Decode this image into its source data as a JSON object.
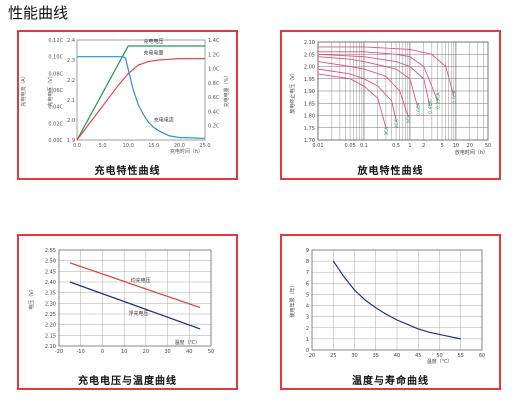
{
  "page_title": "性能曲线",
  "chart_data": [
    {
      "type": "line",
      "caption": "充电特性曲线",
      "xlabel": "充电时间（h）",
      "x_ticks": [
        "0.0",
        "5.0",
        "10.0",
        "15.0",
        "20.0",
        "25.0"
      ],
      "xlim": [
        0,
        25
      ],
      "left_axis_label": "充电电流（A）",
      "left_ticks": [
        "0.00C",
        "0.02C",
        "0.04C",
        "0.06C",
        "0.08C",
        "0.10C",
        "0.12C"
      ],
      "left_ylim": [
        0,
        0.12
      ],
      "mid_axis_label": "充电电压（V）",
      "mid_ticks": [
        "1.9",
        "2.0",
        "2.1",
        "2.2",
        "2.3",
        "2.4"
      ],
      "mid_ylim": [
        1.9,
        2.4
      ],
      "right_axis_label": "充电电量（%）",
      "right_ticks": [
        "0.2C",
        "0.4C",
        "0.6C",
        "0.8C",
        "1.0C",
        "1.2C",
        "1.4C"
      ],
      "right_ylim": [
        0,
        1.4
      ],
      "series": [
        {
          "name": "充电电压",
          "color": "#1a9a52",
          "axis": "mid",
          "x": [
            0,
            10,
            25
          ],
          "y": [
            1.9,
            2.37,
            2.37
          ]
        },
        {
          "name": "充电电量",
          "color": "#e04a4a",
          "axis": "right",
          "x": [
            0,
            2,
            4,
            6,
            8,
            10,
            12,
            14,
            16,
            18,
            20,
            22,
            25
          ],
          "y": [
            0,
            0.19,
            0.38,
            0.57,
            0.76,
            0.93,
            1.05,
            1.1,
            1.12,
            1.13,
            1.14,
            1.14,
            1.14
          ]
        },
        {
          "name": "充电电流",
          "color": "#2f8fcf",
          "axis": "left",
          "x": [
            0,
            9,
            9.5,
            10,
            11,
            12,
            13,
            14,
            15,
            16,
            17,
            18,
            20,
            25
          ],
          "y": [
            0.1,
            0.1,
            0.098,
            0.085,
            0.06,
            0.042,
            0.03,
            0.021,
            0.015,
            0.011,
            0.008,
            0.005,
            0.003,
            0.002
          ]
        }
      ]
    },
    {
      "type": "line",
      "caption": "放电特性曲线",
      "xlabel": "放电时间（h）",
      "x_scale": "log",
      "x_ticks": [
        "0.01",
        "0.05",
        "0.1",
        "0.5",
        "1",
        "2",
        "5",
        "10",
        "20",
        "50"
      ],
      "xlim": [
        0.01,
        50
      ],
      "ylabel": "放电终止电压（V）",
      "y_ticks": [
        "1.70",
        "1.75",
        "1.80",
        "1.85",
        "1.90",
        "1.95",
        "2.00",
        "2.05",
        "2.10"
      ],
      "ylim": [
        1.7,
        2.1
      ],
      "series": [
        {
          "label": "3CA",
          "x": [
            0.01,
            0.05,
            0.1,
            0.2,
            0.3
          ],
          "y": [
            1.97,
            1.95,
            1.92,
            1.87,
            1.75
          ]
        },
        {
          "label": "2CA",
          "x": [
            0.01,
            0.05,
            0.1,
            0.2,
            0.4,
            0.5
          ],
          "y": [
            1.99,
            1.97,
            1.95,
            1.92,
            1.86,
            1.78
          ]
        },
        {
          "label": "1CA",
          "x": [
            0.01,
            0.05,
            0.1,
            0.3,
            0.6,
            0.9
          ],
          "y": [
            2.02,
            2.0,
            1.99,
            1.96,
            1.9,
            1.8
          ]
        },
        {
          "label": "0.6CA",
          "x": [
            0.01,
            0.05,
            0.1,
            0.5,
            1,
            1.5
          ],
          "y": [
            2.04,
            2.03,
            2.02,
            1.99,
            1.95,
            1.83
          ]
        },
        {
          "label": "0.4CA",
          "x": [
            0.01,
            0.1,
            0.5,
            1,
            2,
            2.7
          ],
          "y": [
            2.05,
            2.04,
            2.02,
            2.0,
            1.95,
            1.84
          ]
        },
        {
          "label": "0.25CA",
          "x": [
            0.01,
            0.1,
            0.5,
            1,
            2,
            4
          ],
          "y": [
            2.06,
            2.06,
            2.05,
            2.04,
            2.0,
            1.86
          ]
        },
        {
          "label": "0.1CA",
          "x": [
            0.01,
            0.1,
            1,
            3,
            6,
            9
          ],
          "y": [
            2.08,
            2.08,
            2.07,
            2.05,
            2.0,
            1.88
          ]
        }
      ],
      "colors": {
        "curve": "#e0547e",
        "label": "#1a9a52"
      }
    },
    {
      "type": "line",
      "caption": "充电电压与温度曲线",
      "xlabel": "温度（℃）",
      "x_ticks": [
        "-20",
        "-10",
        "0",
        "10",
        "20",
        "30",
        "40",
        "50"
      ],
      "xlim": [
        -20,
        50
      ],
      "ylabel": "电压（V）",
      "y_ticks": [
        "2.10",
        "2.15",
        "2.20",
        "2.25",
        "2.30",
        "2.35",
        "2.40",
        "2.45",
        "2.50",
        "2.55"
      ],
      "ylim": [
        2.1,
        2.55
      ],
      "series": [
        {
          "name": "均充电压",
          "color": "#e03a3a",
          "x": [
            -15,
            45
          ],
          "y": [
            2.49,
            2.28
          ]
        },
        {
          "name": "浮充电压",
          "color": "#1e2f8a",
          "x": [
            -15,
            45
          ],
          "y": [
            2.4,
            2.18
          ]
        }
      ]
    },
    {
      "type": "line",
      "caption": "温度与寿命曲线",
      "xlabel": "温度（℃）",
      "x_ticks": [
        "20",
        "25",
        "30",
        "35",
        "40",
        "45",
        "50",
        "55",
        "60"
      ],
      "xlim": [
        20,
        60
      ],
      "ylabel": "使用年限（年）",
      "y_ticks": [
        "0",
        "1",
        "2",
        "3",
        "4",
        "5",
        "6",
        "7",
        "8",
        "9"
      ],
      "ylim": [
        0,
        9
      ],
      "series": [
        {
          "color": "#1e2f8a",
          "x": [
            25,
            27.5,
            30,
            32.5,
            35,
            37.5,
            40,
            42.5,
            45,
            47.5,
            50,
            55
          ],
          "y": [
            8,
            6.6,
            5.4,
            4.5,
            3.8,
            3.2,
            2.7,
            2.3,
            1.9,
            1.6,
            1.4,
            1.0
          ]
        }
      ]
    }
  ]
}
